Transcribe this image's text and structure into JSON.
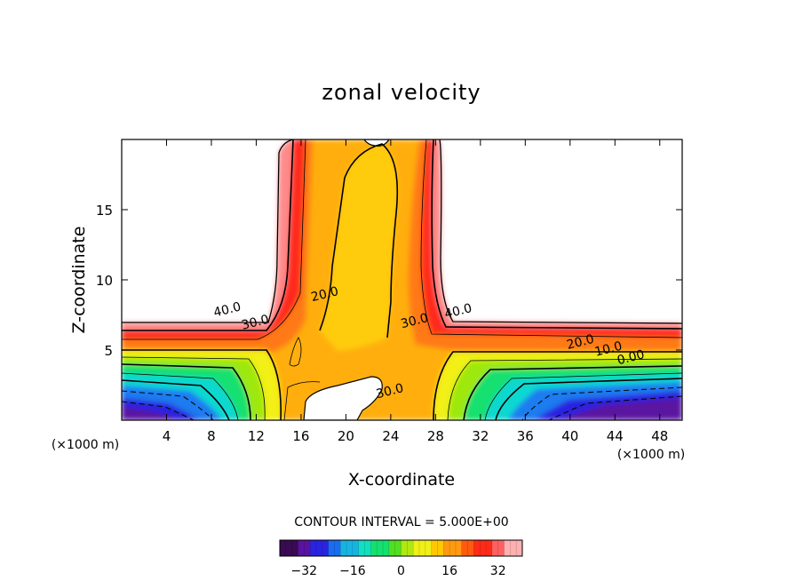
{
  "chart_data": {
    "type": "heatmap",
    "title": "zonal velocity",
    "xlabel": "X-coordinate",
    "ylabel": "Z-coordinate",
    "x_unit_left": "(×1000 m)",
    "x_unit_right": "(×1000 m)",
    "xlim": [
      0,
      50
    ],
    "ylim": [
      0,
      20
    ],
    "x_ticks": [
      4,
      8,
      12,
      16,
      20,
      24,
      28,
      32,
      36,
      40,
      44,
      48
    ],
    "y_ticks": [
      5,
      10,
      15
    ],
    "contour_interval_label": "CONTOUR INTERVAL = 5.000E+00",
    "colorbar": {
      "min": -40,
      "max": 40,
      "ticks": [
        -32,
        -16,
        0,
        16,
        32
      ]
    },
    "contour_labels": [
      {
        "text": "40.0",
        "x": 9.5,
        "y": 7.6
      },
      {
        "text": "30.0",
        "x": 12,
        "y": 6.7
      },
      {
        "text": "20.0",
        "x": 18.2,
        "y": 8.7
      },
      {
        "text": "30.0",
        "x": 26.2,
        "y": 6.8
      },
      {
        "text": "40.0",
        "x": 30.1,
        "y": 7.5
      },
      {
        "text": "20.0",
        "x": 41,
        "y": 5.3
      },
      {
        "text": "10.0",
        "x": 43.5,
        "y": 4.8
      },
      {
        "text": "0.00",
        "x": 45.5,
        "y": 4.2
      },
      {
        "text": "30.0",
        "x": 24,
        "y": 1.8
      }
    ]
  },
  "colors": {
    "colormap": [
      "#3a0a52",
      "#5a12a0",
      "#2a24e0",
      "#1a6cf0",
      "#18b4e0",
      "#10e0c0",
      "#14e070",
      "#50e020",
      "#b0e810",
      "#f0f018",
      "#ffc800",
      "#ff9a10",
      "#ff5a10",
      "#ff2a18",
      "#ff6060",
      "#ffb0b0"
    ]
  }
}
